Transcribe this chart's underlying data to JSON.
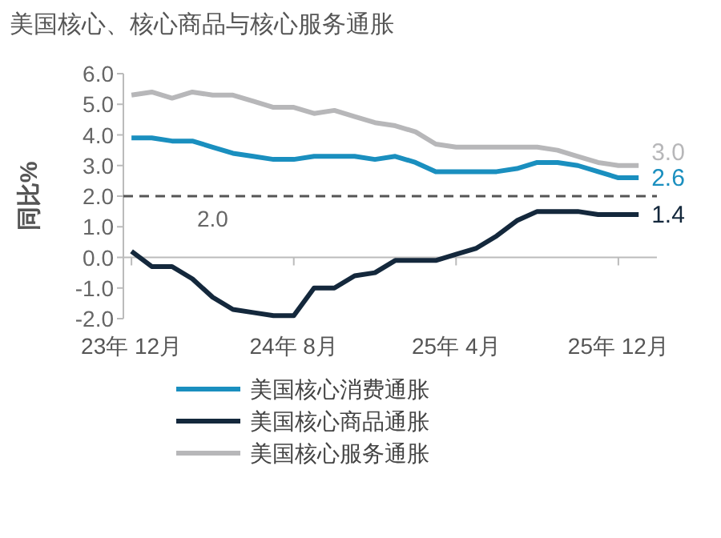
{
  "chart_data": {
    "type": "line",
    "title": "美国核心、核心商品与核心服务通胀",
    "ylabel": "同比%",
    "categories": [
      "23年 12月",
      null,
      null,
      null,
      null,
      null,
      null,
      null,
      "24年 8月",
      null,
      null,
      null,
      null,
      null,
      null,
      null,
      "25年 4月",
      null,
      null,
      null,
      null,
      null,
      null,
      null,
      "25年 12月",
      null
    ],
    "series": [
      {
        "name": "美国核心消费通胀",
        "color": "#1a8fbf",
        "values": [
          3.9,
          3.9,
          3.8,
          3.8,
          3.6,
          3.4,
          3.3,
          3.2,
          3.2,
          3.3,
          3.3,
          3.3,
          3.2,
          3.3,
          3.1,
          2.8,
          2.8,
          2.8,
          2.8,
          2.9,
          3.1,
          3.1,
          3.0,
          2.8,
          2.6,
          2.6
        ],
        "value_labels": [
          null,
          null,
          null,
          null,
          null,
          null,
          null,
          null,
          null,
          null,
          null,
          null,
          null,
          null,
          null,
          null,
          null,
          null,
          null,
          null,
          null,
          null,
          null,
          null,
          null,
          "2.6"
        ]
      },
      {
        "name": "美国核心商品通胀",
        "color": "#14283c",
        "values": [
          0.2,
          -0.3,
          -0.3,
          -0.7,
          -1.3,
          -1.7,
          -1.8,
          -1.9,
          -1.9,
          -1.0,
          -1.0,
          -0.6,
          -0.5,
          -0.1,
          -0.1,
          -0.1,
          0.1,
          0.3,
          0.7,
          1.2,
          1.5,
          1.5,
          1.5,
          1.4,
          1.4,
          1.4
        ],
        "value_labels": [
          null,
          null,
          null,
          null,
          null,
          null,
          null,
          null,
          null,
          null,
          null,
          null,
          null,
          null,
          null,
          null,
          null,
          null,
          null,
          null,
          null,
          null,
          null,
          null,
          null,
          "1.4"
        ]
      },
      {
        "name": "美国核心服务通胀",
        "color": "#b7b7b9",
        "values": [
          5.3,
          5.4,
          5.2,
          5.4,
          5.3,
          5.3,
          5.1,
          4.9,
          4.9,
          4.7,
          4.8,
          4.6,
          4.4,
          4.3,
          4.1,
          3.7,
          3.6,
          3.6,
          3.6,
          3.6,
          3.6,
          3.5,
          3.3,
          3.1,
          3.0,
          3.0
        ],
        "value_labels": [
          null,
          null,
          null,
          null,
          null,
          null,
          null,
          null,
          null,
          null,
          null,
          null,
          null,
          null,
          null,
          null,
          null,
          null,
          null,
          null,
          null,
          null,
          null,
          null,
          null,
          "3.0"
        ]
      }
    ],
    "ylim": [
      -2,
      6
    ],
    "yticks": [
      {
        "value": -2,
        "label": "-2.0"
      },
      {
        "value": -1,
        "label": "-1.0"
      },
      {
        "value": 0,
        "label": "0.0"
      },
      {
        "value": 1,
        "label": "1.0"
      },
      {
        "value": 2,
        "label": "2.0"
      },
      {
        "value": 3,
        "label": "3.0"
      },
      {
        "value": 4,
        "label": "4.0"
      },
      {
        "value": 5,
        "label": "5.0"
      },
      {
        "value": 6,
        "label": "6.0"
      }
    ],
    "ref_lines": [
      {
        "axis": "y",
        "value": 2,
        "label": "2.0",
        "color": "#555555",
        "line_style": "dashed"
      }
    ],
    "grid": false,
    "legend": "bottom",
    "marker": "none",
    "line_style": "solid"
  }
}
